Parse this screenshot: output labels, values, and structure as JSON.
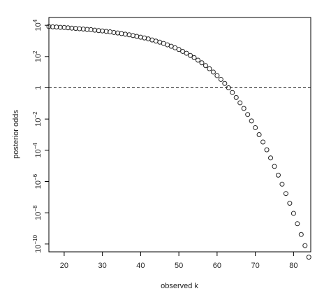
{
  "chart_data": {
    "type": "scatter",
    "xlabel": "observed k",
    "ylabel": "posterior odds",
    "xlim": [
      16,
      84.5
    ],
    "ylim_log10": [
      -10.5,
      4.5
    ],
    "y_scale": "log10",
    "grid": false,
    "marker": "open circle",
    "reference_line": {
      "y": 1,
      "style": "dashed"
    },
    "x_ticks": [
      20,
      30,
      40,
      50,
      60,
      70,
      80
    ],
    "y_ticks": [
      {
        "exp": 4,
        "base": "10",
        "sup": "4"
      },
      {
        "exp": 2,
        "base": "10",
        "sup": "2"
      },
      {
        "exp": 0,
        "base": "1",
        "sup": ""
      },
      {
        "exp": -2,
        "base": "10",
        "sup": "−2"
      },
      {
        "exp": -4,
        "base": "10",
        "sup": "−4"
      },
      {
        "exp": -6,
        "base": "10",
        "sup": "−6"
      },
      {
        "exp": -8,
        "base": "10",
        "sup": "−8"
      },
      {
        "exp": -10,
        "base": "10",
        "sup": "−10"
      }
    ],
    "series": [
      {
        "x": [
          16,
          17,
          18,
          19,
          20,
          21,
          22,
          23,
          24,
          25,
          26,
          27,
          28,
          29,
          30,
          31,
          32,
          33,
          34,
          35,
          36,
          37,
          38,
          39,
          40,
          41,
          42,
          43,
          44,
          45,
          46,
          47,
          48,
          49,
          50,
          51,
          52,
          53,
          54,
          55,
          56,
          57,
          58,
          59,
          60,
          61,
          62,
          63,
          64,
          65,
          66,
          67,
          68,
          69,
          70,
          71,
          72,
          73,
          74,
          75,
          76,
          77,
          78,
          79,
          80,
          81,
          82,
          83,
          84
        ],
        "log10_y": [
          3.92,
          3.9,
          3.89,
          3.87,
          3.86,
          3.84,
          3.82,
          3.8,
          3.78,
          3.76,
          3.74,
          3.72,
          3.69,
          3.66,
          3.64,
          3.61,
          3.58,
          3.54,
          3.51,
          3.47,
          3.43,
          3.39,
          3.34,
          3.29,
          3.24,
          3.19,
          3.13,
          3.06,
          2.99,
          2.92,
          2.84,
          2.75,
          2.66,
          2.56,
          2.45,
          2.33,
          2.21,
          2.07,
          1.93,
          1.77,
          1.6,
          1.42,
          1.22,
          1.01,
          0.78,
          0.54,
          0.28,
          0.0,
          -0.3,
          -0.62,
          -0.96,
          -1.32,
          -1.71,
          -2.12,
          -2.55,
          -3.0,
          -3.47,
          -3.97,
          -4.49,
          -5.03,
          -5.59,
          -6.17,
          -6.77,
          -7.39,
          -8.04,
          -8.7,
          -9.39,
          -10.1,
          -10.84
        ]
      }
    ]
  }
}
